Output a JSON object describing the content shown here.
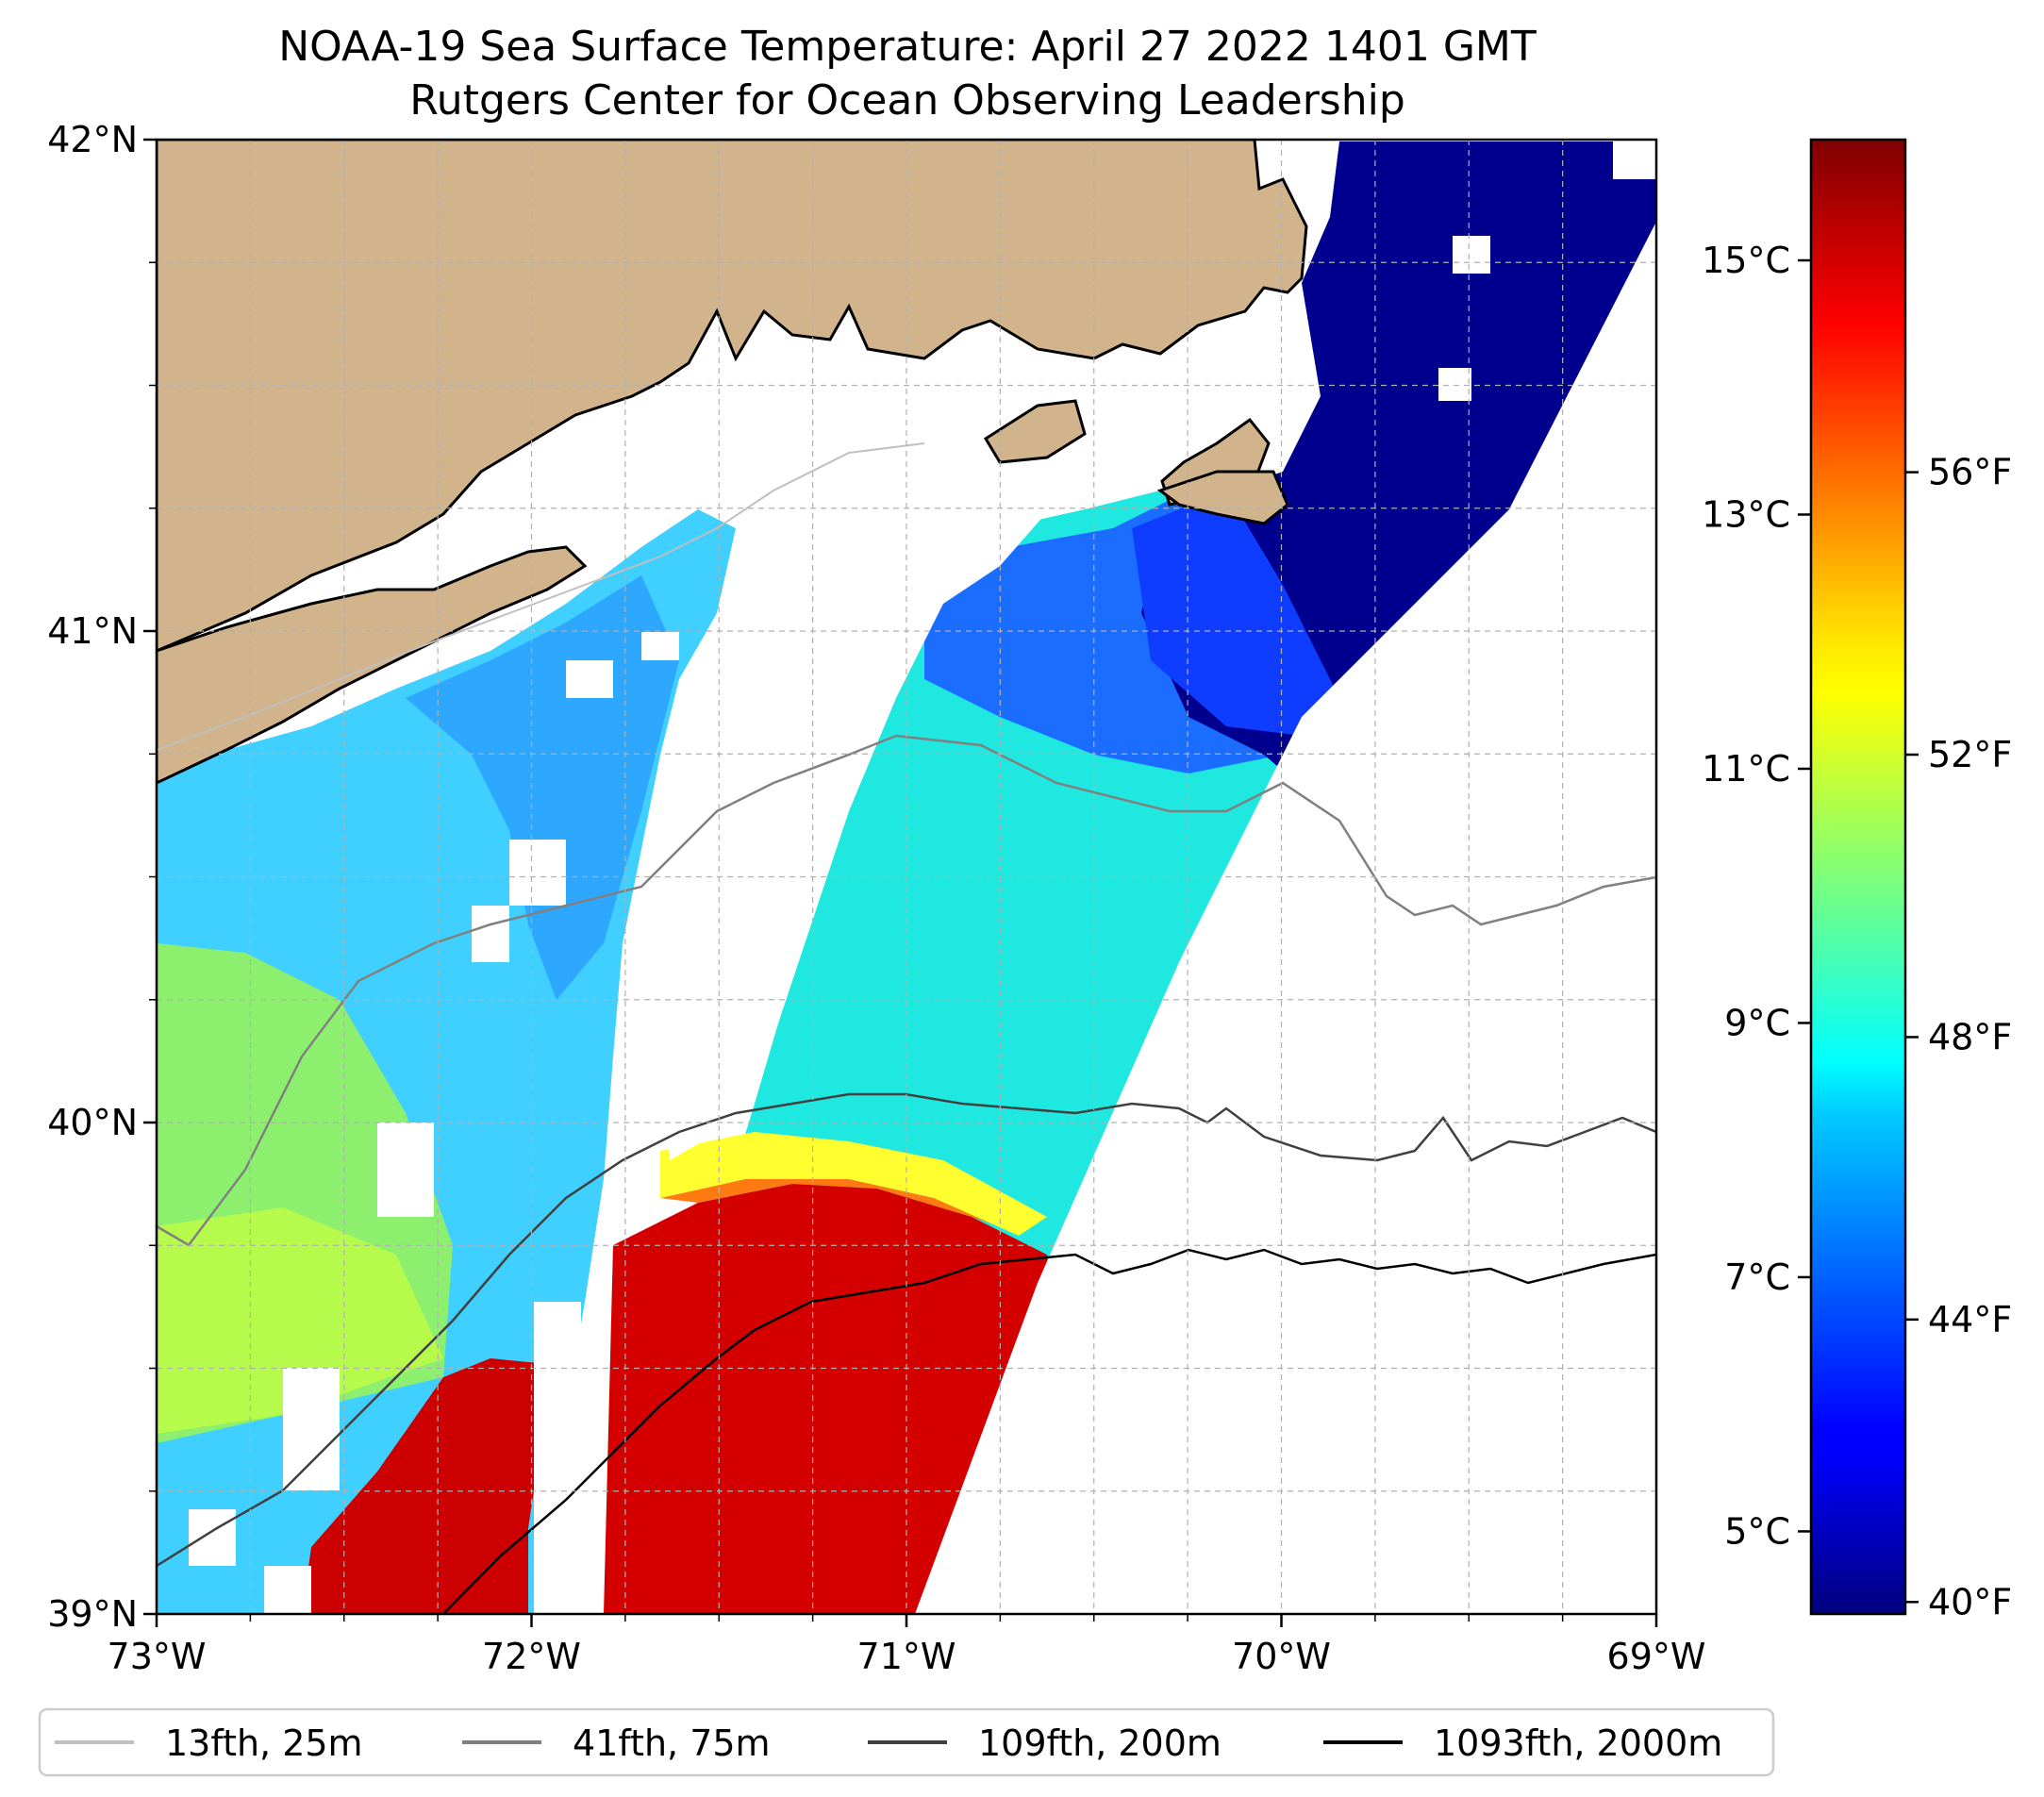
{
  "title": {
    "line1": "NOAA-19 Sea Surface Temperature: April 27 2022 1401 GMT",
    "line2": "Rutgers Center for Ocean Observing Leadership"
  },
  "map": {
    "lon_range": [
      -73,
      -69
    ],
    "lat_range": [
      39,
      42
    ],
    "x_ticks": [
      {
        "value": -73,
        "label": "73°W"
      },
      {
        "value": -72,
        "label": "72°W"
      },
      {
        "value": -71,
        "label": "71°W"
      },
      {
        "value": -70,
        "label": "70°W"
      },
      {
        "value": -69,
        "label": "69°W"
      }
    ],
    "y_ticks": [
      {
        "value": 39,
        "label": "39°N"
      },
      {
        "value": 40,
        "label": "40°N"
      },
      {
        "value": 41,
        "label": "41°N"
      },
      {
        "value": 42,
        "label": "42°N"
      }
    ],
    "grid": true,
    "land_color": "#d2b48c"
  },
  "colorbar": {
    "colormap": "jet",
    "celsius_ticks": [
      {
        "value": 5,
        "label": "5°C"
      },
      {
        "value": 7,
        "label": "7°C"
      },
      {
        "value": 9,
        "label": "9°C"
      },
      {
        "value": 11,
        "label": "11°C"
      },
      {
        "value": 13,
        "label": "13°C"
      },
      {
        "value": 15,
        "label": "15°C"
      }
    ],
    "fahrenheit_ticks": [
      {
        "value": 40,
        "label": "40°F"
      },
      {
        "value": 44,
        "label": "44°F"
      },
      {
        "value": 48,
        "label": "48°F"
      },
      {
        "value": 52,
        "label": "52°F"
      },
      {
        "value": 56,
        "label": "56°F"
      }
    ]
  },
  "legend": {
    "placement": "bottom",
    "items": [
      {
        "label": "13fth, 25m",
        "color": "#c0c0c0"
      },
      {
        "label": "41fth, 75m",
        "color": "#808080"
      },
      {
        "label": "109fth, 200m",
        "color": "#404040"
      },
      {
        "label": "1093fth, 2000m",
        "color": "#000000"
      }
    ]
  }
}
